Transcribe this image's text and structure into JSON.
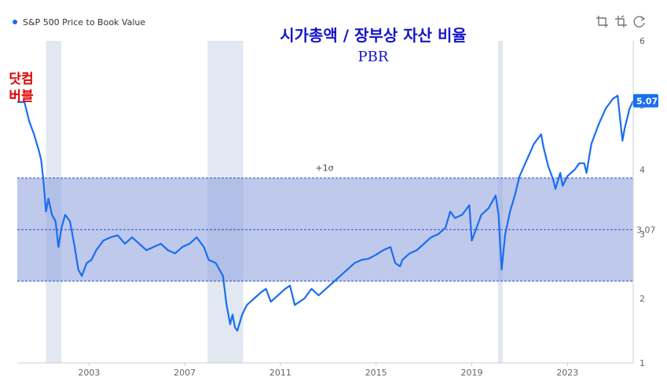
{
  "chart_data": {
    "type": "line",
    "title": "시가총액 / 장부상 자산 비율",
    "subtitle": "PBR",
    "legend": {
      "label": "S&P 500 Price to Book Value",
      "position": "top-left",
      "color": "#1a6ef0"
    },
    "xlim": [
      2000.0,
      2025.75
    ],
    "ylim": [
      1,
      6
    ],
    "x_ticks": [
      2003,
      2007,
      2011,
      2015,
      2019,
      2023
    ],
    "y_ticks": [
      1,
      2,
      3,
      4,
      5,
      6
    ],
    "grid": false,
    "mean_line": {
      "value": 3.07,
      "label": "3.07"
    },
    "sigma_band": {
      "lower": 2.27,
      "upper": 3.87,
      "label": "+1σ",
      "color": "#8b9ddc"
    },
    "recessions": [
      {
        "start": 2001.2,
        "end": 2001.85
      },
      {
        "start": 2007.95,
        "end": 2009.45
      },
      {
        "start": 2020.1,
        "end": 2020.3
      }
    ],
    "last_value": {
      "value": 5.07,
      "label": "5.07"
    },
    "annotation": {
      "lines": [
        "닷컴",
        "버블"
      ],
      "color": "#e00000"
    },
    "series": [
      {
        "name": "S&P 500 Price to Book Value",
        "color": "#1a6ef0",
        "points": [
          [
            2000.0,
            5.05
          ],
          [
            2000.3,
            5.05
          ],
          [
            2000.5,
            4.75
          ],
          [
            2000.7,
            4.55
          ],
          [
            2000.9,
            4.3
          ],
          [
            2001.0,
            4.15
          ],
          [
            2001.1,
            3.8
          ],
          [
            2001.2,
            3.35
          ],
          [
            2001.3,
            3.55
          ],
          [
            2001.45,
            3.3
          ],
          [
            2001.6,
            3.2
          ],
          [
            2001.72,
            2.8
          ],
          [
            2001.85,
            3.1
          ],
          [
            2002.0,
            3.3
          ],
          [
            2002.2,
            3.2
          ],
          [
            2002.4,
            2.8
          ],
          [
            2002.55,
            2.45
          ],
          [
            2002.7,
            2.35
          ],
          [
            2002.9,
            2.55
          ],
          [
            2003.1,
            2.6
          ],
          [
            2003.3,
            2.75
          ],
          [
            2003.6,
            2.9
          ],
          [
            2003.9,
            2.95
          ],
          [
            2004.2,
            2.98
          ],
          [
            2004.5,
            2.85
          ],
          [
            2004.8,
            2.95
          ],
          [
            2005.1,
            2.85
          ],
          [
            2005.4,
            2.75
          ],
          [
            2005.7,
            2.8
          ],
          [
            2006.0,
            2.85
          ],
          [
            2006.3,
            2.75
          ],
          [
            2006.6,
            2.7
          ],
          [
            2006.9,
            2.8
          ],
          [
            2007.2,
            2.85
          ],
          [
            2007.5,
            2.95
          ],
          [
            2007.8,
            2.8
          ],
          [
            2008.0,
            2.6
          ],
          [
            2008.3,
            2.55
          ],
          [
            2008.6,
            2.35
          ],
          [
            2008.75,
            1.9
          ],
          [
            2008.9,
            1.6
          ],
          [
            2009.0,
            1.75
          ],
          [
            2009.1,
            1.55
          ],
          [
            2009.2,
            1.5
          ],
          [
            2009.4,
            1.75
          ],
          [
            2009.6,
            1.9
          ],
          [
            2009.9,
            2.0
          ],
          [
            2010.2,
            2.1
          ],
          [
            2010.4,
            2.15
          ],
          [
            2010.6,
            1.95
          ],
          [
            2010.9,
            2.05
          ],
          [
            2011.2,
            2.15
          ],
          [
            2011.4,
            2.2
          ],
          [
            2011.6,
            1.9
          ],
          [
            2011.8,
            1.95
          ],
          [
            2012.0,
            2.0
          ],
          [
            2012.3,
            2.15
          ],
          [
            2012.6,
            2.05
          ],
          [
            2012.9,
            2.15
          ],
          [
            2013.2,
            2.25
          ],
          [
            2013.5,
            2.35
          ],
          [
            2013.8,
            2.45
          ],
          [
            2014.1,
            2.55
          ],
          [
            2014.4,
            2.6
          ],
          [
            2014.7,
            2.62
          ],
          [
            2015.0,
            2.68
          ],
          [
            2015.3,
            2.75
          ],
          [
            2015.6,
            2.8
          ],
          [
            2015.8,
            2.55
          ],
          [
            2016.0,
            2.5
          ],
          [
            2016.1,
            2.6
          ],
          [
            2016.4,
            2.7
          ],
          [
            2016.7,
            2.75
          ],
          [
            2017.0,
            2.85
          ],
          [
            2017.3,
            2.95
          ],
          [
            2017.6,
            3.0
          ],
          [
            2017.9,
            3.1
          ],
          [
            2018.1,
            3.35
          ],
          [
            2018.3,
            3.25
          ],
          [
            2018.6,
            3.3
          ],
          [
            2018.9,
            3.45
          ],
          [
            2019.0,
            2.9
          ],
          [
            2019.15,
            3.05
          ],
          [
            2019.4,
            3.3
          ],
          [
            2019.7,
            3.4
          ],
          [
            2020.0,
            3.6
          ],
          [
            2020.12,
            3.3
          ],
          [
            2020.25,
            2.45
          ],
          [
            2020.4,
            3.0
          ],
          [
            2020.6,
            3.35
          ],
          [
            2020.8,
            3.6
          ],
          [
            2021.0,
            3.9
          ],
          [
            2021.3,
            4.15
          ],
          [
            2021.6,
            4.4
          ],
          [
            2021.9,
            4.55
          ],
          [
            2022.0,
            4.35
          ],
          [
            2022.2,
            4.05
          ],
          [
            2022.4,
            3.85
          ],
          [
            2022.5,
            3.7
          ],
          [
            2022.7,
            3.95
          ],
          [
            2022.8,
            3.75
          ],
          [
            2023.0,
            3.9
          ],
          [
            2023.3,
            4.0
          ],
          [
            2023.5,
            4.1
          ],
          [
            2023.7,
            4.1
          ],
          [
            2023.8,
            3.95
          ],
          [
            2024.0,
            4.4
          ],
          [
            2024.3,
            4.7
          ],
          [
            2024.6,
            4.95
          ],
          [
            2024.9,
            5.1
          ],
          [
            2025.1,
            5.15
          ],
          [
            2025.3,
            4.45
          ],
          [
            2025.4,
            4.65
          ],
          [
            2025.6,
            4.95
          ],
          [
            2025.75,
            5.07
          ]
        ]
      }
    ]
  },
  "toolbar": {
    "icons": [
      "crop-icon",
      "crop-alt-icon",
      "refresh-icon"
    ]
  },
  "colors": {
    "line": "#1a6ef0",
    "band": "#8b9ddc",
    "recession": "#dde4ee",
    "title": "#1515c8",
    "annotation": "#e00000"
  }
}
